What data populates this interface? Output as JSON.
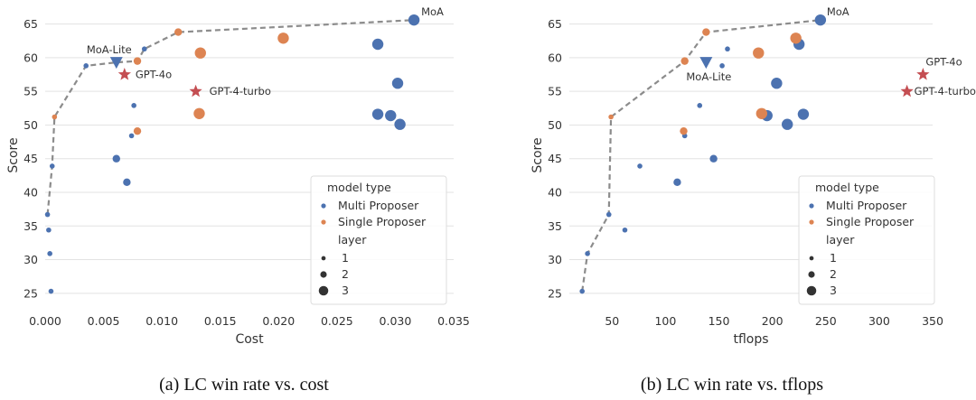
{
  "colors": {
    "multi": "#4c72b0",
    "single": "#dd8452",
    "star": "#c44e52",
    "frontier": "#8c8c8c",
    "grid": "#e3e3e3",
    "legend_marker": "#333333"
  },
  "legend": {
    "title": "model type",
    "items": [
      "Multi Proposer",
      "Single Proposer"
    ],
    "size_title": "layer",
    "size_items": [
      "1",
      "2",
      "3"
    ]
  },
  "chart_data": [
    {
      "type": "scatter",
      "caption": "(a) LC win rate vs. cost",
      "xlabel": "Cost",
      "ylabel": "Score",
      "xlim": [
        0.0,
        0.035
      ],
      "ylim": [
        23.5,
        67.5
      ],
      "xticks": [
        0.0,
        0.005,
        0.01,
        0.015,
        0.02,
        0.025,
        0.03,
        0.035
      ],
      "xtick_labels": [
        "0.000",
        "0.005",
        "0.010",
        "0.015",
        "0.020",
        "0.025",
        "0.030",
        "0.035"
      ],
      "yticks": [
        25,
        30,
        35,
        40,
        45,
        50,
        55,
        60,
        65
      ],
      "grid": "horizontal",
      "legend_position": "bottom-right",
      "multi_proposer": [
        {
          "x": 0.0005,
          "y": 25.3,
          "layer": 1
        },
        {
          "x": 0.0004,
          "y": 30.9,
          "layer": 1
        },
        {
          "x": 0.0003,
          "y": 34.4,
          "layer": 1
        },
        {
          "x": 0.0002,
          "y": 36.7,
          "layer": 1
        },
        {
          "x": 0.0006,
          "y": 43.9,
          "layer": 1
        },
        {
          "x": 0.0035,
          "y": 58.8,
          "layer": 1
        },
        {
          "x": 0.0076,
          "y": 52.9,
          "layer": 1
        },
        {
          "x": 0.0074,
          "y": 48.4,
          "layer": 1
        },
        {
          "x": 0.0085,
          "y": 61.3,
          "layer": 1
        },
        {
          "x": 0.007,
          "y": 41.5,
          "layer": 2
        },
        {
          "x": 0.0061,
          "y": 45.0,
          "layer": 2
        },
        {
          "x": 0.0285,
          "y": 62.0,
          "layer": 3
        },
        {
          "x": 0.0302,
          "y": 56.2,
          "layer": 3
        },
        {
          "x": 0.0285,
          "y": 51.6,
          "layer": 3
        },
        {
          "x": 0.0296,
          "y": 51.4,
          "layer": 3
        },
        {
          "x": 0.0304,
          "y": 50.1,
          "layer": 3
        },
        {
          "x": 0.0316,
          "y": 65.6,
          "layer": 3
        }
      ],
      "single_proposer": [
        {
          "x": 0.0008,
          "y": 51.2,
          "layer": 1
        },
        {
          "x": 0.0079,
          "y": 49.1,
          "layer": 2
        },
        {
          "x": 0.0079,
          "y": 59.5,
          "layer": 2
        },
        {
          "x": 0.0114,
          "y": 63.8,
          "layer": 2
        },
        {
          "x": 0.0133,
          "y": 60.7,
          "layer": 3
        },
        {
          "x": 0.0132,
          "y": 51.7,
          "layer": 3
        },
        {
          "x": 0.0204,
          "y": 62.9,
          "layer": 3
        }
      ],
      "special": [
        {
          "label": "MoA-Lite",
          "marker": "triangle",
          "x": 0.0061,
          "y": 59.3
        },
        {
          "label": "GPT-4o",
          "marker": "star",
          "x": 0.0068,
          "y": 57.5
        },
        {
          "label": "GPT-4-turbo",
          "marker": "star",
          "x": 0.0129,
          "y": 55.0
        }
      ],
      "annotations": [
        {
          "text": "MoA",
          "x": 0.0316,
          "y": 65.6
        },
        {
          "text": "MoA-Lite",
          "x": 0.0061,
          "y": 59.3
        },
        {
          "text": "GPT-4o",
          "x": 0.0068,
          "y": 57.5
        },
        {
          "text": "GPT-4-turbo",
          "x": 0.0129,
          "y": 55.0
        }
      ],
      "frontier": [
        [
          0.0002,
          36.7
        ],
        [
          0.0006,
          43.9
        ],
        [
          0.0008,
          51.2
        ],
        [
          0.0035,
          58.8
        ],
        [
          0.0061,
          59.3
        ],
        [
          0.0079,
          59.5
        ],
        [
          0.0085,
          61.3
        ],
        [
          0.0114,
          63.8
        ],
        [
          0.0316,
          65.6
        ]
      ]
    },
    {
      "type": "scatter",
      "caption": "(b) LC win rate vs. tflops",
      "xlabel": "tflops",
      "ylabel": "Score",
      "xlim": [
        10,
        350
      ],
      "ylim": [
        23.5,
        67.5
      ],
      "xticks": [
        50,
        100,
        150,
        200,
        250,
        300,
        350
      ],
      "xtick_labels": [
        "50",
        "100",
        "150",
        "200",
        "250",
        "300",
        "350"
      ],
      "yticks": [
        25,
        30,
        35,
        40,
        45,
        50,
        55,
        60,
        65
      ],
      "grid": "horizontal",
      "legend_position": "bottom-right",
      "multi_proposer": [
        {
          "x": 22,
          "y": 25.3,
          "layer": 1
        },
        {
          "x": 27,
          "y": 30.9,
          "layer": 1
        },
        {
          "x": 62,
          "y": 34.4,
          "layer": 1
        },
        {
          "x": 47,
          "y": 36.7,
          "layer": 1
        },
        {
          "x": 76,
          "y": 43.9,
          "layer": 1
        },
        {
          "x": 132,
          "y": 52.9,
          "layer": 1
        },
        {
          "x": 118,
          "y": 48.4,
          "layer": 1
        },
        {
          "x": 158,
          "y": 61.3,
          "layer": 1
        },
        {
          "x": 153,
          "y": 58.8,
          "layer": 1
        },
        {
          "x": 111,
          "y": 41.5,
          "layer": 2
        },
        {
          "x": 145,
          "y": 45.0,
          "layer": 2
        },
        {
          "x": 225,
          "y": 62.0,
          "layer": 3
        },
        {
          "x": 204,
          "y": 56.2,
          "layer": 3
        },
        {
          "x": 229,
          "y": 51.6,
          "layer": 3
        },
        {
          "x": 195,
          "y": 51.4,
          "layer": 3
        },
        {
          "x": 214,
          "y": 50.1,
          "layer": 3
        },
        {
          "x": 245,
          "y": 65.6,
          "layer": 3
        }
      ],
      "single_proposer": [
        {
          "x": 49,
          "y": 51.2,
          "layer": 1
        },
        {
          "x": 117,
          "y": 49.1,
          "layer": 2
        },
        {
          "x": 118,
          "y": 59.5,
          "layer": 2
        },
        {
          "x": 138,
          "y": 63.8,
          "layer": 2
        },
        {
          "x": 187,
          "y": 60.7,
          "layer": 3
        },
        {
          "x": 190,
          "y": 51.7,
          "layer": 3
        },
        {
          "x": 222,
          "y": 62.9,
          "layer": 3
        }
      ],
      "special": [
        {
          "label": "MoA-Lite",
          "marker": "triangle",
          "x": 138,
          "y": 59.3
        },
        {
          "label": "GPT-4o",
          "marker": "star",
          "x": 341,
          "y": 57.5
        },
        {
          "label": "GPT-4-turbo",
          "marker": "star",
          "x": 326,
          "y": 55.0
        }
      ],
      "annotations": [
        {
          "text": "MoA",
          "x": 245,
          "y": 65.6
        },
        {
          "text": "MoA-Lite",
          "x": 138,
          "y": 59.3
        },
        {
          "text": "GPT-4o",
          "x": 341,
          "y": 57.5
        },
        {
          "text": "GPT-4-turbo",
          "x": 326,
          "y": 55.0
        }
      ],
      "frontier": [
        [
          22,
          25.3
        ],
        [
          27,
          30.9
        ],
        [
          47,
          36.7
        ],
        [
          49,
          51.2
        ],
        [
          118,
          59.5
        ],
        [
          138,
          63.8
        ],
        [
          245,
          65.6
        ]
      ]
    }
  ]
}
